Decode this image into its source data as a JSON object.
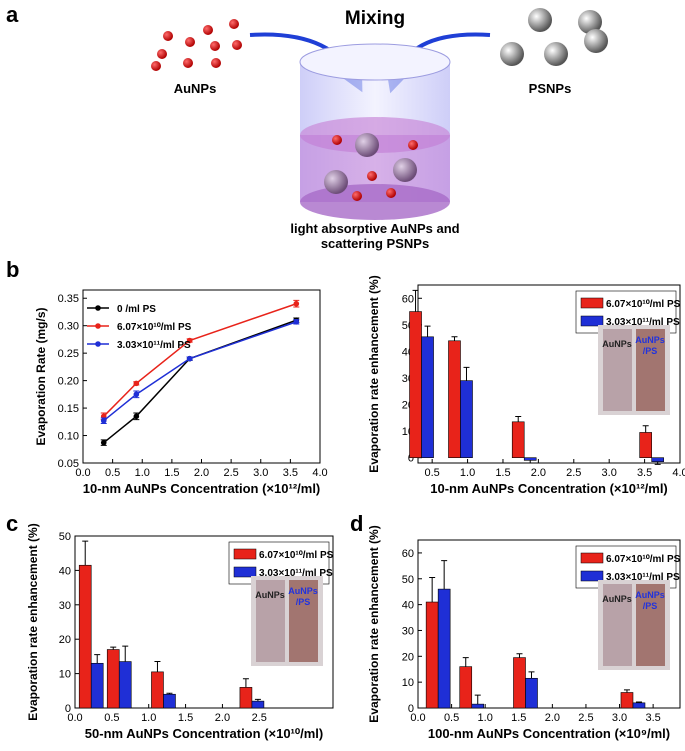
{
  "panel_labels": [
    "a",
    "b",
    "c",
    "d"
  ],
  "diagram": {
    "mixing": "Mixing",
    "left": "AuNPs",
    "right": "PSNPs",
    "caption": [
      "light absorptive AuNPs and",
      "scattering PSNPs"
    ]
  },
  "chart_data": [
    {
      "type": "line",
      "xlabel": "10-nm AuNPs Concentration (×10¹²/ml)",
      "ylabel": "Evaporation Rate (mg/s)",
      "x": [
        0.35,
        0.9,
        1.8,
        3.6
      ],
      "series": [
        {
          "name": "0 /ml    PS",
          "color": "#000000",
          "values": [
            0.087,
            0.135,
            0.24,
            0.31
          ],
          "errors": [
            0.005,
            0.006,
            0.003,
            0.004
          ]
        },
        {
          "name": "6.07×10¹⁰/ml PS",
          "color": "#e8231a",
          "values": [
            0.135,
            0.195,
            0.273,
            0.34
          ],
          "errors": [
            0.006,
            0.003,
            0.003,
            0.006
          ]
        },
        {
          "name": "3.03×10¹¹/ml PS",
          "color": "#1f2fd6",
          "values": [
            0.127,
            0.175,
            0.24,
            0.307
          ],
          "errors": [
            0.005,
            0.006,
            0.003,
            0.004
          ]
        }
      ],
      "xlim": [
        0,
        4
      ],
      "ylim": [
        0.05,
        0.365
      ],
      "xticks": [
        {
          "value": 0,
          "label": "0.0"
        },
        0.5,
        {
          "value": 1,
          "label": "1.0"
        },
        1.5,
        {
          "value": 2,
          "label": "2.0"
        },
        2.5,
        {
          "value": 3,
          "label": "3.0"
        },
        3.5,
        {
          "value": 4,
          "label": "4.0"
        }
      ],
      "yticks": [
        0.05,
        {
          "value": 0.1,
          "label": "0.10"
        },
        0.15,
        {
          "value": 0.2,
          "label": "0.20"
        },
        0.25,
        {
          "value": 0.3,
          "label": "0.30"
        },
        0.35
      ],
      "legend": "upper left"
    },
    {
      "type": "bar",
      "xlabel": "10-nm AuNPs Concentration (×10¹²/ml)",
      "ylabel": "Evaporation rate enhancement (%)",
      "x": [
        0.35,
        0.9,
        1.8,
        3.6
      ],
      "series": [
        {
          "name": "6.07×10¹⁰/ml PS",
          "color": "#e8231a",
          "values": [
            55,
            44,
            13.5,
            9.5
          ],
          "errors": [
            8,
            1.5,
            2,
            2.5
          ]
        },
        {
          "name": "3.03×10¹¹/ml PS",
          "color": "#1f2fd6",
          "values": [
            45.5,
            29,
            -1,
            -1.5
          ],
          "errors": [
            4,
            5,
            1,
            1
          ]
        }
      ],
      "xlim": [
        0.3,
        4
      ],
      "ylim": [
        -2,
        65
      ],
      "xticks": [
        0.5,
        {
          "value": 1,
          "label": "1.0"
        },
        1.5,
        {
          "value": 2,
          "label": "2.0"
        },
        2.5,
        {
          "value": 3,
          "label": "3.0"
        },
        3.5,
        {
          "value": 4,
          "label": "4.0"
        }
      ],
      "yticks": [
        0,
        10,
        20,
        30,
        40,
        50,
        60
      ],
      "legend": "upper right",
      "inset_labels": [
        "AuNPs",
        "AuNPs",
        "/PS"
      ]
    },
    {
      "type": "bar",
      "xlabel": "50-nm AuNPs Concentration (×10¹⁰/ml)",
      "ylabel": "Evaporation rate enhancement (%)",
      "x": [
        0.22,
        0.6,
        1.2,
        2.4
      ],
      "series": [
        {
          "name": "6.07×10¹⁰/ml PS",
          "color": "#e8231a",
          "values": [
            41.5,
            17,
            10.5,
            6
          ],
          "errors": [
            7,
            0.7,
            3,
            2.5
          ]
        },
        {
          "name": "3.03×10¹¹/ml PS",
          "color": "#1f2fd6",
          "values": [
            13,
            13.5,
            4,
            2
          ],
          "errors": [
            2.5,
            4.5,
            0.3,
            0.5
          ]
        }
      ],
      "xlim": [
        0,
        3.5
      ],
      "ylim": [
        0,
        50
      ],
      "xticks": [
        {
          "value": 0,
          "label": "0.0"
        },
        0.5,
        {
          "value": 1,
          "label": "1.0"
        },
        1.5,
        {
          "value": 2,
          "label": "2.0"
        },
        2.5
      ],
      "yticks": [
        0,
        10,
        20,
        30,
        40,
        50
      ],
      "legend": "upper right",
      "inset_labels": [
        "AuNPs",
        "AuNPs",
        "/PS"
      ]
    },
    {
      "type": "bar",
      "xlabel": "100-nm AuNPs Concentration (×10⁹/ml)",
      "ylabel": "Evaporation rate enhancement (%)",
      "x": [
        0.3,
        0.8,
        1.6,
        3.2
      ],
      "series": [
        {
          "name": "6.07×10¹⁰/ml PS",
          "color": "#e8231a",
          "values": [
            41,
            16,
            19.5,
            6
          ],
          "errors": [
            9.5,
            3.5,
            1.5,
            1
          ]
        },
        {
          "name": "3.03×10¹¹/ml PS",
          "color": "#1f2fd6",
          "values": [
            46,
            1.5,
            11.5,
            2
          ],
          "errors": [
            11,
            3.5,
            2.5,
            0.3
          ]
        }
      ],
      "xlim": [
        0,
        3.9
      ],
      "ylim": [
        0,
        65
      ],
      "xticks": [
        {
          "value": 0,
          "label": "0.0"
        },
        0.5,
        {
          "value": 1,
          "label": "1.0"
        },
        1.5,
        {
          "value": 2,
          "label": "2.0"
        },
        2.5,
        {
          "value": 3,
          "label": "3.0"
        },
        3.5
      ],
      "yticks": [
        0,
        10,
        20,
        30,
        40,
        50,
        60
      ],
      "legend": "upper right",
      "inset_labels": [
        "AuNPs",
        "AuNPs",
        "/PS"
      ]
    }
  ]
}
